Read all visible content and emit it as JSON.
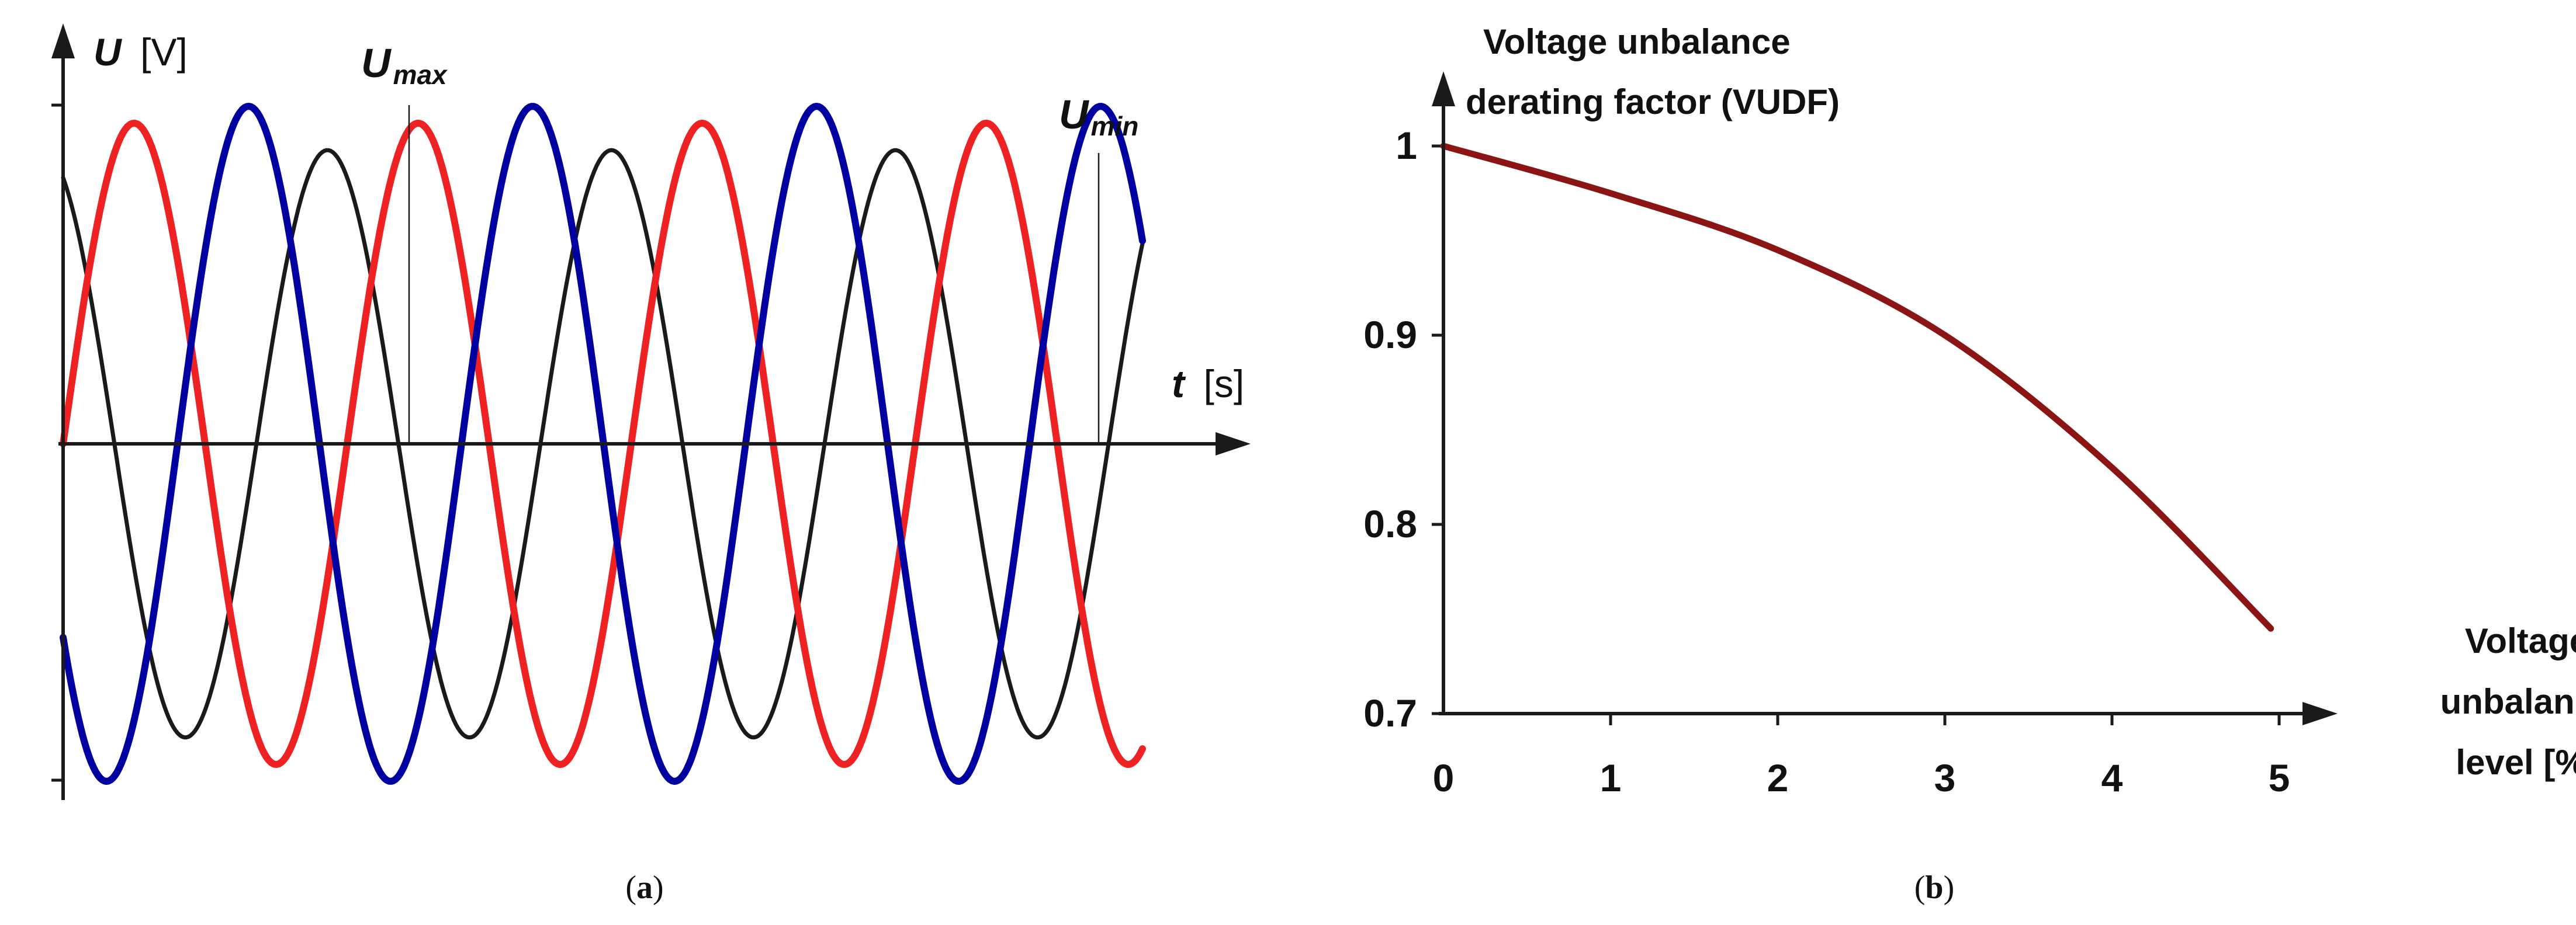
{
  "chart_data": [
    {
      "type": "line",
      "panel": "a",
      "caption": "a",
      "ylabel_symbol": "U",
      "ylabel_unit": "[V]",
      "xlabel_symbol": "t",
      "xlabel_unit": "[s]",
      "annotations": [
        {
          "base": "U",
          "sub": "max"
        },
        {
          "base": "U",
          "sub": "min"
        }
      ],
      "series": [
        {
          "color": "#1a1a1a",
          "amplitude": 0.87,
          "phase_deg": 115,
          "periods": 3.8
        },
        {
          "color": "#ee2222",
          "amplitude": 0.95,
          "phase_deg": 0,
          "periods": 3.8
        },
        {
          "color": "#0000a0",
          "amplitude": 1.0,
          "phase_deg": -145,
          "periods": 3.8
        }
      ]
    },
    {
      "type": "line",
      "panel": "b",
      "caption": "b",
      "title_lines": [
        "Voltage unbalance",
        "derating factor (VUDF)"
      ],
      "xlabel_lines": [
        "Voltage",
        "unbalance",
        "level [%]"
      ],
      "xlim": [
        0,
        5.4
      ],
      "ylim": [
        0.7,
        1.03
      ],
      "xticks": [
        "0",
        "1",
        "2",
        "3",
        "4",
        "5"
      ],
      "yticks": [
        "0.7",
        "0.8",
        "0.9",
        "1"
      ],
      "series": [
        {
          "color": "#8b1515",
          "x": [
            0,
            1,
            2,
            3,
            4,
            4.95
          ],
          "y": [
            1.0,
            0.975,
            0.945,
            0.9,
            0.83,
            0.745
          ]
        }
      ]
    }
  ]
}
